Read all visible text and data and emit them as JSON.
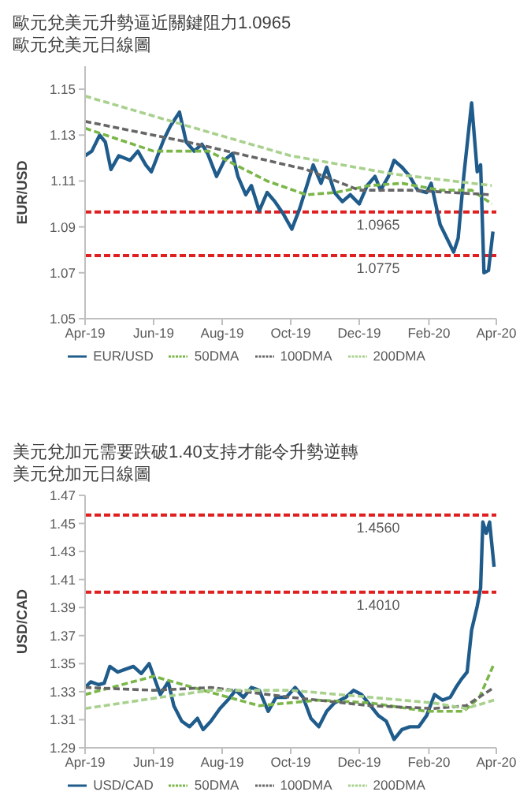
{
  "chart_data": [
    {
      "type": "line",
      "title": "歐元兌美元升勢逼近關鍵阻力1.0965",
      "subtitle": "歐元兌美元日線圖",
      "ylabel": "EUR/USD",
      "xlim": [
        "2019-04-01",
        "2020-04-01"
      ],
      "xticks": [
        {
          "value": "2019-04-01",
          "label": "Apr-19"
        },
        {
          "value": "2019-06-01",
          "label": "Jun-19"
        },
        {
          "value": "2019-08-01",
          "label": "Aug-19"
        },
        {
          "value": "2019-10-01",
          "label": "Oct-19"
        },
        {
          "value": "2019-12-01",
          "label": "Dec-19"
        },
        {
          "value": "2020-02-01",
          "label": "Feb-20"
        },
        {
          "value": "2020-04-01",
          "label": "Apr-20"
        }
      ],
      "ylim": [
        1.05,
        1.16
      ],
      "yticks": [
        1.05,
        1.07,
        1.09,
        1.11,
        1.13,
        1.15
      ],
      "grid": false,
      "legend": "bottom",
      "series": [
        {
          "name": "EUR/USD",
          "color": "#1f5c8b",
          "x": [
            "2019-04-01",
            "2019-04-07",
            "2019-04-14",
            "2019-04-19",
            "2019-04-24",
            "2019-05-01",
            "2019-05-11",
            "2019-05-18",
            "2019-05-25",
            "2019-05-30",
            "2019-06-03",
            "2019-06-10",
            "2019-06-16",
            "2019-06-24",
            "2019-06-30",
            "2019-07-07",
            "2019-07-14",
            "2019-07-19",
            "2019-07-27",
            "2019-08-03",
            "2019-08-10",
            "2019-08-15",
            "2019-08-22",
            "2019-08-27",
            "2019-09-03",
            "2019-09-10",
            "2019-09-17",
            "2019-09-24",
            "2019-10-02",
            "2019-10-09",
            "2019-10-16",
            "2019-10-21",
            "2019-10-28",
            "2019-11-02",
            "2019-11-09",
            "2019-11-16",
            "2019-11-23",
            "2019-12-01",
            "2019-12-08",
            "2019-12-15",
            "2019-12-20",
            "2019-12-27",
            "2020-01-01",
            "2020-01-08",
            "2020-01-15",
            "2020-01-22",
            "2020-01-30",
            "2020-02-03",
            "2020-02-11",
            "2020-02-18",
            "2020-02-23",
            "2020-02-27",
            "2020-03-03",
            "2020-03-10",
            "2020-03-15",
            "2020-03-18",
            "2020-03-21",
            "2020-03-25",
            "2020-03-29"
          ],
          "values": [
            1.121,
            1.123,
            1.13,
            1.127,
            1.115,
            1.121,
            1.119,
            1.123,
            1.117,
            1.114,
            1.119,
            1.128,
            1.134,
            1.14,
            1.127,
            1.123,
            1.126,
            1.122,
            1.112,
            1.119,
            1.122,
            1.112,
            1.104,
            1.108,
            1.097,
            1.105,
            1.101,
            1.096,
            1.089,
            1.098,
            1.109,
            1.117,
            1.109,
            1.116,
            1.105,
            1.101,
            1.104,
            1.1,
            1.108,
            1.112,
            1.106,
            1.112,
            1.119,
            1.116,
            1.112,
            1.106,
            1.105,
            1.109,
            1.091,
            1.084,
            1.079,
            1.085,
            1.112,
            1.144,
            1.114,
            1.117,
            1.07,
            1.071,
            1.088
          ]
        },
        {
          "name": "50DMA",
          "color": "#7ab648",
          "line_style": "dashed",
          "x": [
            "2019-04-01",
            "2019-06-01",
            "2019-07-20",
            "2019-09-10",
            "2019-10-15",
            "2019-11-10",
            "2019-12-10",
            "2020-01-08",
            "2020-02-11",
            "2020-03-10",
            "2020-03-28"
          ],
          "values": [
            1.133,
            1.123,
            1.123,
            1.11,
            1.104,
            1.105,
            1.108,
            1.109,
            1.106,
            1.106,
            1.1
          ]
        },
        {
          "name": "100DMA",
          "color": "#666666",
          "line_style": "dashed",
          "x": [
            "2019-04-01",
            "2019-07-01",
            "2019-10-15",
            "2019-12-01",
            "2020-01-15",
            "2020-03-28"
          ],
          "values": [
            1.136,
            1.127,
            1.115,
            1.106,
            1.106,
            1.104
          ]
        },
        {
          "name": "200DMA",
          "color": "#a9d18e",
          "line_style": "dashed",
          "x": [
            "2019-04-01",
            "2019-07-01",
            "2019-10-01",
            "2020-01-01",
            "2020-03-28"
          ],
          "values": [
            1.147,
            1.134,
            1.121,
            1.113,
            1.108
          ]
        }
      ],
      "ref_lines": [
        {
          "axis": "y",
          "value": 1.0965,
          "label": "1.0965",
          "color": "#e02020",
          "line_style": "dashed"
        },
        {
          "axis": "y",
          "value": 1.0775,
          "label": "1.0775",
          "color": "#e02020",
          "line_style": "dashed"
        }
      ]
    },
    {
      "type": "line",
      "title": "美元兌加元需要跌破1.40支持才能令升勢逆轉",
      "subtitle": "美元兌加元日線圖",
      "ylabel": "USD/CAD",
      "xlim": [
        "2019-04-01",
        "2020-04-01"
      ],
      "xticks": [
        {
          "value": "2019-04-01",
          "label": "Apr-19"
        },
        {
          "value": "2019-06-01",
          "label": "Jun-19"
        },
        {
          "value": "2019-08-01",
          "label": "Aug-19"
        },
        {
          "value": "2019-10-01",
          "label": "Oct-19"
        },
        {
          "value": "2019-12-01",
          "label": "Dec-19"
        },
        {
          "value": "2020-02-01",
          "label": "Feb-20"
        },
        {
          "value": "2020-04-01",
          "label": "Apr-20"
        }
      ],
      "ylim": [
        1.29,
        1.47
      ],
      "yticks": [
        1.29,
        1.31,
        1.33,
        1.35,
        1.37,
        1.39,
        1.41,
        1.43,
        1.45,
        1.47
      ],
      "grid": false,
      "legend": "bottom",
      "series": [
        {
          "name": "USD/CAD",
          "color": "#1f5c8b",
          "x": [
            "2019-04-01",
            "2019-04-06",
            "2019-04-13",
            "2019-04-18",
            "2019-04-23",
            "2019-04-30",
            "2019-05-07",
            "2019-05-14",
            "2019-05-21",
            "2019-05-28",
            "2019-06-02",
            "2019-06-07",
            "2019-06-14",
            "2019-06-19",
            "2019-06-26",
            "2019-07-03",
            "2019-07-10",
            "2019-07-15",
            "2019-07-22",
            "2019-07-30",
            "2019-08-06",
            "2019-08-13",
            "2019-08-20",
            "2019-08-27",
            "2019-09-03",
            "2019-09-11",
            "2019-09-18",
            "2019-09-27",
            "2019-10-05",
            "2019-10-12",
            "2019-10-19",
            "2019-10-26",
            "2019-11-02",
            "2019-11-09",
            "2019-11-19",
            "2019-11-26",
            "2019-12-03",
            "2019-12-11",
            "2019-12-18",
            "2019-12-25",
            "2020-01-01",
            "2020-01-08",
            "2020-01-15",
            "2020-01-23",
            "2020-01-30",
            "2020-02-06",
            "2020-02-13",
            "2020-02-20",
            "2020-02-25",
            "2020-03-01",
            "2020-03-06",
            "2020-03-10",
            "2020-03-15",
            "2020-03-18",
            "2020-03-20",
            "2020-03-23",
            "2020-03-26",
            "2020-03-30"
          ],
          "values": [
            1.333,
            1.337,
            1.335,
            1.336,
            1.348,
            1.344,
            1.346,
            1.348,
            1.343,
            1.35,
            1.339,
            1.328,
            1.337,
            1.32,
            1.309,
            1.305,
            1.311,
            1.303,
            1.309,
            1.318,
            1.324,
            1.331,
            1.326,
            1.333,
            1.331,
            1.316,
            1.326,
            1.326,
            1.333,
            1.326,
            1.311,
            1.305,
            1.316,
            1.322,
            1.326,
            1.331,
            1.328,
            1.32,
            1.313,
            1.309,
            1.296,
            1.303,
            1.305,
            1.305,
            1.313,
            1.328,
            1.324,
            1.326,
            1.333,
            1.339,
            1.344,
            1.374,
            1.391,
            1.404,
            1.451,
            1.443,
            1.451,
            1.419
          ]
        },
        {
          "name": "50DMA",
          "color": "#7ab648",
          "line_style": "dashed",
          "x": [
            "2019-04-01",
            "2019-06-01",
            "2019-07-15",
            "2019-09-03",
            "2019-10-26",
            "2019-12-11",
            "2020-01-30",
            "2020-03-03",
            "2020-03-17",
            "2020-03-30"
          ],
          "values": [
            1.328,
            1.341,
            1.331,
            1.32,
            1.324,
            1.322,
            1.316,
            1.316,
            1.326,
            1.35
          ]
        },
        {
          "name": "100DMA",
          "color": "#666666",
          "line_style": "dashed",
          "x": [
            "2019-04-01",
            "2019-06-01",
            "2019-07-22",
            "2019-10-01",
            "2019-12-11",
            "2020-02-05",
            "2020-03-05",
            "2020-03-30"
          ],
          "values": [
            1.333,
            1.331,
            1.333,
            1.326,
            1.32,
            1.318,
            1.32,
            1.333
          ]
        },
        {
          "name": "200DMA",
          "color": "#a9d18e",
          "line_style": "dashed",
          "x": [
            "2019-04-01",
            "2019-06-07",
            "2019-07-22",
            "2019-10-01",
            "2019-12-11",
            "2020-02-05",
            "2020-03-05",
            "2020-03-30"
          ],
          "values": [
            1.318,
            1.326,
            1.331,
            1.331,
            1.326,
            1.322,
            1.318,
            1.324
          ]
        }
      ],
      "ref_lines": [
        {
          "axis": "y",
          "value": 1.456,
          "label": "1.4560",
          "color": "#e02020",
          "line_style": "dashed"
        },
        {
          "axis": "y",
          "value": 1.401,
          "label": "1.4010",
          "color": "#e02020",
          "line_style": "dashed"
        }
      ]
    }
  ]
}
